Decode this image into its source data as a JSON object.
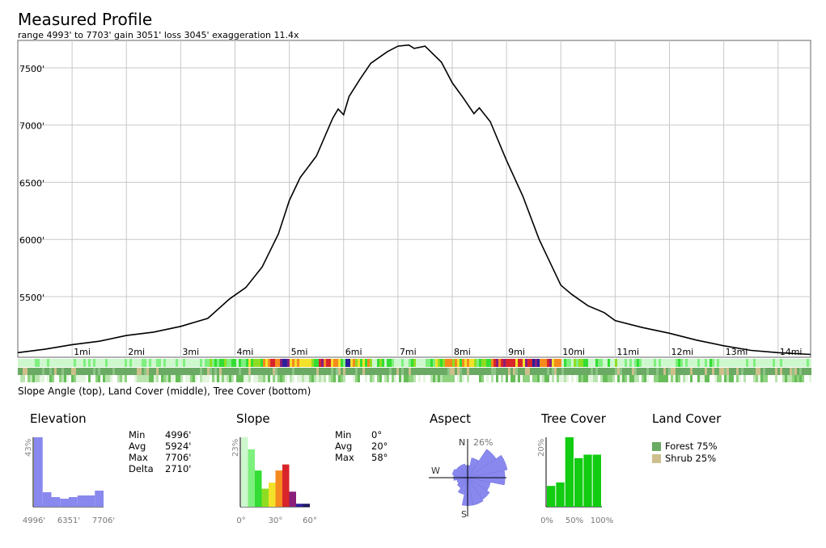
{
  "header": {
    "title": "Measured Profile",
    "subtitle": "range 4993' to 7703'  gain 3051'  loss 3045'  exaggeration 11.4x"
  },
  "chart_data": [
    {
      "type": "line",
      "name": "elevation-profile",
      "x_unit": "mi",
      "y_unit": "ft",
      "xlim": [
        0,
        14.6
      ],
      "ylim": [
        4970,
        7740
      ],
      "y_ticks": [
        5500,
        6000,
        6500,
        7000,
        7500
      ],
      "y_tick_labels": [
        "5500'",
        "6000'",
        "6500'",
        "7000'",
        "7500'"
      ],
      "x_ticks": [
        1,
        2,
        3,
        4,
        5,
        6,
        7,
        8,
        9,
        10,
        11,
        12,
        13,
        14
      ],
      "x_tick_labels": [
        "1mi",
        "2mi",
        "3mi",
        "4mi",
        "5mi",
        "6mi",
        "7mi",
        "8mi",
        "9mi",
        "10mi",
        "11mi",
        "12mi",
        "13mi",
        "14mi"
      ],
      "grid": true,
      "x": [
        0,
        0.5,
        1,
        1.5,
        2,
        2.5,
        3,
        3.5,
        3.9,
        4.2,
        4.5,
        4.8,
        5,
        5.2,
        5.5,
        5.8,
        5.9,
        6,
        6.1,
        6.3,
        6.5,
        6.8,
        7,
        7.2,
        7.3,
        7.5,
        7.8,
        8,
        8.2,
        8.4,
        8.5,
        8.7,
        9,
        9.3,
        9.6,
        10,
        10.2,
        10.5,
        10.8,
        11,
        11.5,
        12,
        12.5,
        13,
        13.5,
        14,
        14.6
      ],
      "y": [
        5010,
        5040,
        5080,
        5110,
        5160,
        5190,
        5240,
        5310,
        5480,
        5580,
        5760,
        6050,
        6340,
        6540,
        6730,
        7060,
        7140,
        7090,
        7250,
        7400,
        7540,
        7640,
        7690,
        7700,
        7670,
        7690,
        7550,
        7370,
        7240,
        7100,
        7150,
        7030,
        6690,
        6380,
        6000,
        5600,
        5520,
        5420,
        5360,
        5290,
        5230,
        5180,
        5120,
        5070,
        5030,
        5010,
        4995
      ]
    },
    {
      "type": "bar",
      "name": "Elevation",
      "x_tick_labels": [
        "4996'",
        "6351'",
        "7706'"
      ],
      "y_label": "43%",
      "values": [
        43,
        9,
        6,
        5,
        6,
        7,
        7,
        10
      ],
      "stats": [
        {
          "k": "Min",
          "v": "4996'"
        },
        {
          "k": "Avg",
          "v": "5924'"
        },
        {
          "k": "Max",
          "v": "7706'"
        },
        {
          "k": "Delta",
          "v": "2710'"
        }
      ]
    },
    {
      "type": "bar",
      "name": "Slope",
      "x_tick_labels": [
        "0°",
        "30°",
        "60°"
      ],
      "y_label": "23%",
      "values": [
        23,
        19,
        12,
        6,
        8,
        12,
        14,
        5,
        1,
        1
      ],
      "colors": [
        "#cdf7cd",
        "#7ef07e",
        "#33dd33",
        "#8fdd22",
        "#f2e22a",
        "#f58a1d",
        "#d9252a",
        "#8a1e7a",
        "#2b1f9a",
        "#1a1a60"
      ],
      "stats": [
        {
          "k": "Min",
          "v": "0°"
        },
        {
          "k": "Avg",
          "v": "20°"
        },
        {
          "k": "Max",
          "v": "58°"
        }
      ]
    },
    {
      "type": "pie",
      "name": "Aspect",
      "north_label": "N",
      "south_label": "S",
      "west_label": "W",
      "max_label": "26%",
      "directions": [
        "N",
        "NNE",
        "NE",
        "ENE",
        "E",
        "ESE",
        "SE",
        "SSE",
        "S",
        "SSW",
        "SW",
        "WSW",
        "W",
        "WNW",
        "NW",
        "NNW"
      ],
      "values": [
        8,
        13,
        22,
        26,
        24,
        15,
        17,
        18,
        18,
        11,
        8,
        7,
        9,
        10,
        9,
        9
      ]
    },
    {
      "type": "bar",
      "name": "Tree Cover",
      "x_tick_labels": [
        "0%",
        "50%",
        "100%"
      ],
      "y_label": "20%",
      "values": [
        6,
        7,
        20,
        14,
        15,
        15
      ],
      "color": "#11cc11"
    },
    {
      "type": "table",
      "name": "Land Cover",
      "items": [
        {
          "label": "Forest 75%",
          "color": "#6aaa64"
        },
        {
          "label": "Shrub 25%",
          "color": "#cdbf8c"
        }
      ]
    }
  ],
  "strips": {
    "caption": "Slope Angle (top), Land Cover (middle), Tree Cover (bottom)"
  },
  "colors": {
    "grid": "#c8c8c8",
    "frame": "#666666",
    "profile_line": "#000000",
    "elevation_hist": "#8888ee",
    "aspect_rose": "#8888ee"
  }
}
